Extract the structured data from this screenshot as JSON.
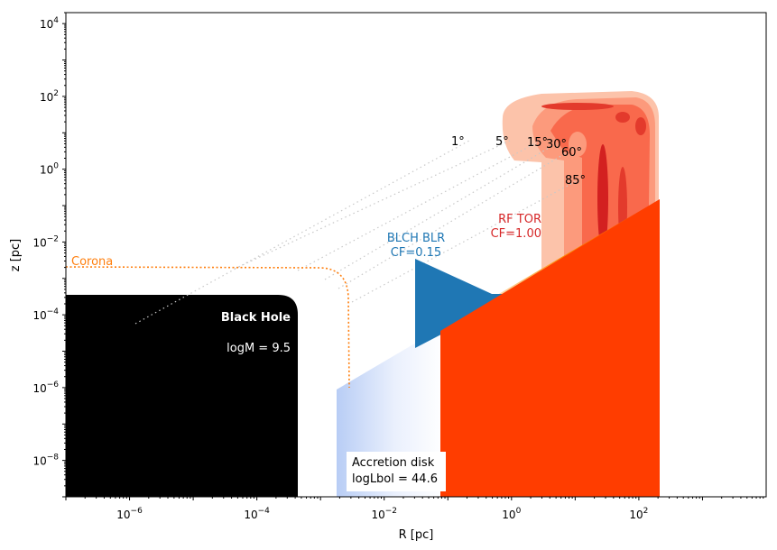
{
  "chart_data": {
    "type": "diagram",
    "xlabel": "R [pc]",
    "ylabel": "z [pc]",
    "xscale": "log",
    "yscale": "log",
    "xlim": [
      1e-07,
      10000.0
    ],
    "ylim": [
      1e-09,
      20000.0
    ],
    "x_ticks": [
      {
        "value": 1e-06,
        "base": "10",
        "exp": "−6"
      },
      {
        "value": 0.0001,
        "base": "10",
        "exp": "−4"
      },
      {
        "value": 0.01,
        "base": "10",
        "exp": "−2"
      },
      {
        "value": 1.0,
        "base": "10",
        "exp": "0"
      },
      {
        "value": 100.0,
        "base": "10",
        "exp": "2"
      }
    ],
    "y_ticks": [
      {
        "value": 1e-08,
        "base": "10",
        "exp": "−8"
      },
      {
        "value": 1e-06,
        "base": "10",
        "exp": "−6"
      },
      {
        "value": 0.0001,
        "base": "10",
        "exp": "−4"
      },
      {
        "value": 0.01,
        "base": "10",
        "exp": "−2"
      },
      {
        "value": 1.0,
        "base": "10",
        "exp": "0"
      },
      {
        "value": 100.0,
        "base": "10",
        "exp": "2"
      },
      {
        "value": 10000.0,
        "base": "10",
        "exp": "4"
      }
    ],
    "black_hole": {
      "label": "Black Hole",
      "mass_label": "logM = 9.5",
      "color": "#000000",
      "r_max": 0.00053,
      "z_max": 0.0003
    },
    "corona": {
      "label": "Corona",
      "color": "#ff7f0e",
      "z": 0.0018,
      "r": 0.0013
    },
    "accretion_disk": {
      "label": "Accretion disk",
      "lum_label": "logLbol = 44.6",
      "r_in": 0.0013,
      "r_out": 120
    },
    "blr": {
      "label": "BLCH BLR",
      "cf_label": "CF=0.15",
      "color": "#1f77b4"
    },
    "torus": {
      "label": "RF TOR",
      "cf_label": "CF=1.00",
      "label_color": "#d62728",
      "wedge_color": "#ff3d00"
    },
    "angle_labels": [
      "1°",
      "5°",
      "15°",
      "30°",
      "60°",
      "85°"
    ]
  }
}
